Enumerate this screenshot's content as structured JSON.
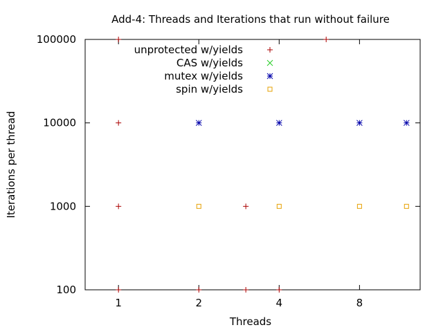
{
  "chart_data": {
    "type": "scatter",
    "title": "Add-4: Threads and Iterations that run without failure",
    "xlabel": "Threads",
    "ylabel": "Iterations per thread",
    "x_scale": "log2",
    "y_scale": "log10",
    "xlim": [
      0.75,
      13.5
    ],
    "ylim": [
      100,
      100000
    ],
    "x_ticks": [
      1,
      2,
      4,
      8
    ],
    "x_tick_labels": [
      "1",
      "2",
      "4",
      "8"
    ],
    "y_ticks": [
      100,
      1000,
      10000,
      100000
    ],
    "y_tick_labels": [
      "100",
      "1000",
      "10000",
      "100000"
    ],
    "grid": false,
    "legend_position": "top-left",
    "series": [
      {
        "name": "unprotected w/yields",
        "color": "#aa0000",
        "marker": "plus",
        "points": [
          [
            1,
            100
          ],
          [
            1,
            1000
          ],
          [
            1,
            10000
          ],
          [
            1,
            100000
          ],
          [
            2,
            100
          ],
          [
            3,
            100
          ],
          [
            3,
            1000
          ],
          [
            4,
            100
          ],
          [
            6,
            100000
          ]
        ]
      },
      {
        "name": "CAS w/yields",
        "color": "#22cc22",
        "marker": "cross",
        "points": []
      },
      {
        "name": "mutex w/yields",
        "color": "#0000aa",
        "marker": "star",
        "points": [
          [
            2,
            10000
          ],
          [
            4,
            10000
          ],
          [
            8,
            10000
          ],
          [
            12,
            10000
          ]
        ]
      },
      {
        "name": "spin w/yields",
        "color": "#e6a000",
        "marker": "square",
        "points": [
          [
            2,
            1000
          ],
          [
            4,
            1000
          ],
          [
            8,
            1000
          ],
          [
            12,
            1000
          ]
        ]
      }
    ]
  }
}
